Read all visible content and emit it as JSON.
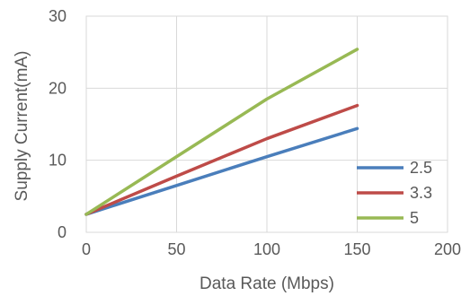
{
  "chart_data": {
    "type": "line",
    "title": "",
    "xlabel": "Data Rate (Mbps)",
    "ylabel": "Supply Current(mA)",
    "xlim": [
      0,
      200
    ],
    "ylim": [
      0,
      30
    ],
    "xticks": [
      0,
      50,
      100,
      150,
      200
    ],
    "yticks": [
      0,
      10,
      20,
      30
    ],
    "grid": true,
    "legend_position": "right",
    "series": [
      {
        "name": "2.5",
        "color": "#4a7ebb",
        "x": [
          0,
          50,
          100,
          150
        ],
        "y": [
          2.5,
          6.5,
          10.5,
          14.4
        ]
      },
      {
        "name": "3.3",
        "color": "#be4b48",
        "x": [
          0,
          50,
          100,
          150
        ],
        "y": [
          2.5,
          7.8,
          13.0,
          17.6
        ]
      },
      {
        "name": "5",
        "color": "#98b954",
        "x": [
          0,
          50,
          100,
          150
        ],
        "y": [
          2.5,
          10.5,
          18.5,
          25.4
        ]
      }
    ]
  }
}
